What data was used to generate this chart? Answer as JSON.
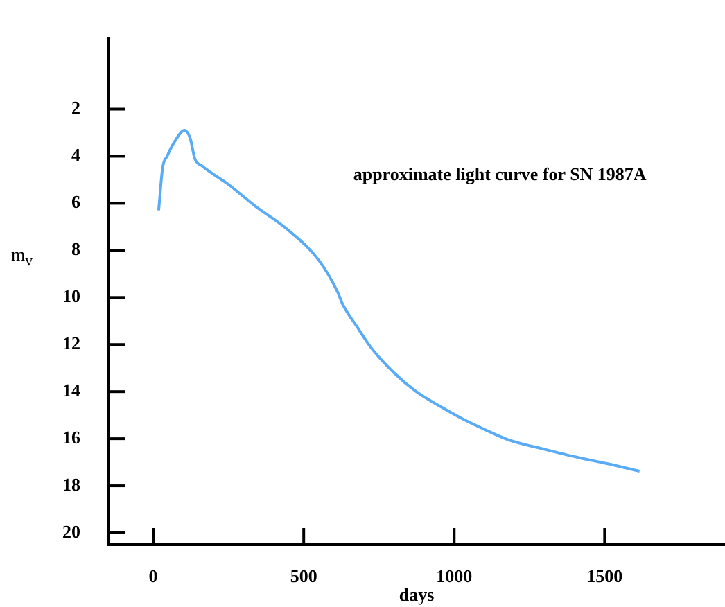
{
  "chart_data": {
    "type": "line",
    "xlabel": "days",
    "ylabel": "m$_{v}$",
    "annotations": [
      "approximate light curve for SN 1987A"
    ],
    "x": [
      18,
      31,
      46,
      70,
      104,
      123,
      138,
      161,
      250,
      337,
      445,
      552,
      612,
      630,
      680,
      722,
      800,
      874,
      950,
      1027,
      1100,
      1181,
      1300,
      1412,
      1505,
      1616
    ],
    "series": [
      {
        "color": "#5aabf5",
        "values": [
          6.3,
          4.5,
          4.0,
          3.4,
          2.9,
          3.25,
          4.1,
          4.4,
          5.2,
          6.1,
          7.1,
          8.45,
          9.75,
          10.3,
          11.3,
          12.1,
          13.2,
          14.0,
          14.6,
          15.15,
          15.6,
          16.05,
          16.45,
          16.8,
          17.05,
          17.38
        ]
      }
    ],
    "xlim": [
      -150,
      1900
    ],
    "xticks": [
      0,
      500,
      1000,
      1500
    ],
    "ylim": [
      20.5,
      -1
    ],
    "yticks": [
      2,
      4,
      6,
      8,
      10,
      12,
      14,
      16,
      18,
      20
    ],
    "grid": false,
    "legend": false
  }
}
